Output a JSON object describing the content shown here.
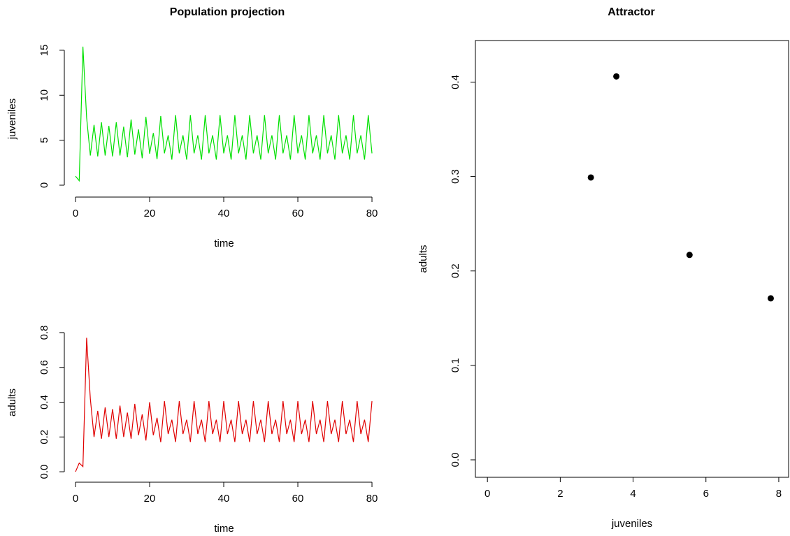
{
  "chart_data": [
    {
      "type": "line",
      "title": "Population projection",
      "xlabel": "time",
      "ylabel": "juveniles",
      "color": "#00e000",
      "x": [
        0,
        1,
        2,
        3,
        4,
        5,
        6,
        7,
        8,
        9,
        10,
        11,
        12,
        13,
        14,
        15,
        16,
        17,
        18,
        19,
        20,
        21,
        22,
        23,
        24,
        25,
        26,
        27,
        28,
        29,
        30,
        31,
        32,
        33,
        34,
        35,
        36,
        37,
        38,
        39,
        40,
        41,
        42,
        43,
        44,
        45,
        46,
        47,
        48,
        49,
        50,
        51,
        52,
        53,
        54,
        55,
        56,
        57,
        58,
        59,
        60,
        61,
        62,
        63,
        64,
        65,
        66,
        67,
        68,
        69,
        70,
        71,
        72,
        73,
        74,
        75,
        76,
        77,
        78,
        79,
        80
      ],
      "values": [
        1.0,
        0.5,
        15.4,
        7.5,
        3.3,
        6.7,
        3.2,
        7.0,
        3.3,
        6.6,
        3.2,
        7.0,
        3.3,
        6.5,
        3.1,
        7.3,
        3.4,
        6.2,
        3.0,
        7.6,
        3.5,
        5.8,
        2.9,
        7.7,
        3.54,
        5.55,
        2.84,
        7.78,
        3.54,
        5.55,
        2.84,
        7.78,
        3.54,
        5.55,
        2.84,
        7.78,
        3.54,
        5.55,
        2.84,
        7.78,
        3.54,
        5.55,
        2.84,
        7.78,
        3.54,
        5.55,
        2.84,
        7.78,
        3.54,
        5.55,
        2.84,
        7.78,
        3.54,
        5.55,
        2.84,
        7.78,
        3.54,
        5.55,
        2.84,
        7.78,
        3.54,
        5.55,
        2.84,
        7.78,
        3.54,
        5.55,
        2.84,
        7.78,
        3.54,
        5.55,
        2.84,
        7.78,
        3.54,
        5.55,
        2.84,
        7.78,
        3.54,
        5.55,
        2.84,
        7.78,
        3.54
      ],
      "xlim": [
        -3.02,
        83.2
      ],
      "xticks": [
        0,
        20,
        40,
        60,
        80
      ],
      "ylim": [
        -1.32,
        16.08
      ],
      "yticks": [
        0,
        5,
        10,
        15
      ],
      "box": false
    },
    {
      "type": "line",
      "xlabel": "time",
      "ylabel": "adults",
      "color": "#e00000",
      "x": [
        0,
        1,
        2,
        3,
        4,
        5,
        6,
        7,
        8,
        9,
        10,
        11,
        12,
        13,
        14,
        15,
        16,
        17,
        18,
        19,
        20,
        21,
        22,
        23,
        24,
        25,
        26,
        27,
        28,
        29,
        30,
        31,
        32,
        33,
        34,
        35,
        36,
        37,
        38,
        39,
        40,
        41,
        42,
        43,
        44,
        45,
        46,
        47,
        48,
        49,
        50,
        51,
        52,
        53,
        54,
        55,
        56,
        57,
        58,
        59,
        60,
        61,
        62,
        63,
        64,
        65,
        66,
        67,
        68,
        69,
        70,
        71,
        72,
        73,
        74,
        75,
        76,
        77,
        78,
        79,
        80
      ],
      "values": [
        0,
        0.05,
        0.03,
        0.77,
        0.42,
        0.2,
        0.35,
        0.19,
        0.37,
        0.2,
        0.36,
        0.19,
        0.38,
        0.2,
        0.34,
        0.19,
        0.39,
        0.21,
        0.33,
        0.18,
        0.4,
        0.21,
        0.31,
        0.17,
        0.406,
        0.217,
        0.299,
        0.171,
        0.406,
        0.217,
        0.299,
        0.171,
        0.406,
        0.217,
        0.299,
        0.171,
        0.406,
        0.217,
        0.299,
        0.171,
        0.406,
        0.217,
        0.299,
        0.171,
        0.406,
        0.217,
        0.299,
        0.171,
        0.406,
        0.217,
        0.299,
        0.171,
        0.406,
        0.217,
        0.299,
        0.171,
        0.406,
        0.217,
        0.299,
        0.171,
        0.406,
        0.217,
        0.299,
        0.171,
        0.406,
        0.217,
        0.299,
        0.171,
        0.406,
        0.217,
        0.299,
        0.171,
        0.406,
        0.217,
        0.299,
        0.171,
        0.406,
        0.217,
        0.299,
        0.171,
        0.406
      ],
      "xlim": [
        -3.02,
        83.2
      ],
      "xticks": [
        0,
        20,
        40,
        60,
        80
      ],
      "ylim": [
        -0.06,
        0.856
      ],
      "yticks": [
        {
          "value": 0,
          "label": "0.0"
        },
        0.2,
        0.4,
        0.6,
        0.8
      ],
      "box": false
    },
    {
      "type": "scatter",
      "title": "Attractor",
      "xlabel": "juveniles",
      "ylabel": "adults",
      "color": "#000000",
      "x": [
        3.54,
        5.55,
        2.84,
        7.78
      ],
      "values": [
        0.406,
        0.217,
        0.299,
        0.171
      ],
      "xlim": [
        -0.33,
        8.27
      ],
      "xticks": [
        0,
        2,
        4,
        6,
        8
      ],
      "ylim": [
        -0.0185,
        0.444
      ],
      "yticks": [
        {
          "value": 0,
          "label": "0.0"
        },
        0.1,
        0.2,
        0.3,
        0.4
      ],
      "box": true
    }
  ]
}
